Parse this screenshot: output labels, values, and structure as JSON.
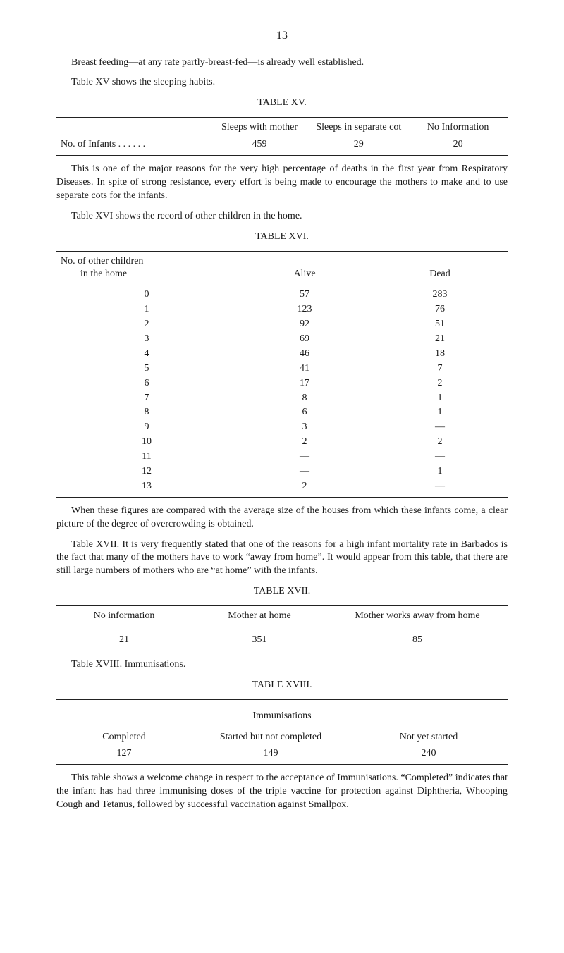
{
  "page_number": "13",
  "intro_para": "Breast feeding—at any rate partly-breast-fed—is already well established.",
  "table_xv": {
    "intro": "Table XV shows the sleeping habits.",
    "title": "TABLE  XV.",
    "headers": [
      "",
      "Sleeps with mother",
      "Sleeps in separate cot",
      "No Information"
    ],
    "row_label": "No. of Infants . .     . .     . .",
    "row": [
      "459",
      "29",
      "20"
    ]
  },
  "para_after_xv": "This is one of the major reasons for the very high percentage of deaths in the first year from Respiratory Diseases. In spite of strong resistance, every effort is being made to encourage the mothers to make and to use separ­ate cots for the infants.",
  "table_xvi": {
    "intro": "Table XVI shows the record of other children in the home.",
    "title": "TABLE  XVI.",
    "col1_header_l1": "No. of other children",
    "col1_header_l2": "in the home",
    "col2_header": "Alive",
    "col3_header": "Dead",
    "rows": [
      {
        "n": "0",
        "alive": "57",
        "dead": "283"
      },
      {
        "n": "1",
        "alive": "123",
        "dead": "76"
      },
      {
        "n": "2",
        "alive": "92",
        "dead": "51"
      },
      {
        "n": "3",
        "alive": "69",
        "dead": "21"
      },
      {
        "n": "4",
        "alive": "46",
        "dead": "18"
      },
      {
        "n": "5",
        "alive": "41",
        "dead": "7"
      },
      {
        "n": "6",
        "alive": "17",
        "dead": "2"
      },
      {
        "n": "7",
        "alive": "8",
        "dead": "1"
      },
      {
        "n": "8",
        "alive": "6",
        "dead": "1"
      },
      {
        "n": "9",
        "alive": "3",
        "dead": "—"
      },
      {
        "n": "10",
        "alive": "2",
        "dead": "2"
      },
      {
        "n": "11",
        "alive": "—",
        "dead": "—"
      },
      {
        "n": "12",
        "alive": "—",
        "dead": "1"
      },
      {
        "n": "13",
        "alive": "2",
        "dead": "—"
      }
    ]
  },
  "para_after_xvi": "When these figures are compared with the average size of the houses from which these infants come, a clear picture of the degree of overcrowding is obtained.",
  "para_before_xvii": "Table XVII. It is very frequently stated that one of the reasons for a high infant mortality rate in Barbados is the fact that many of the mothers have to work “away from home”. It would appear from this table, that there are still large numbers of mothers who are “at home” with the infants.",
  "table_xvii": {
    "title": "TABLE  XVII.",
    "headers": [
      "No information",
      "Mother at home",
      "Mother works away from home"
    ],
    "row": [
      "21",
      "351",
      "85"
    ]
  },
  "table_xviii": {
    "intro": "Table XVIII.  Immunisations.",
    "title": "TABLE  XVIII.",
    "section_header": "Immunisations",
    "headers": [
      "Completed",
      "Started but not completed",
      "Not yet started"
    ],
    "row": [
      "127",
      "149",
      "240"
    ]
  },
  "final_para": "This table shows a welcome change in respect to the acceptance of Im­munisations. “Completed” indicates that the infant has had three immunis­ing doses of the triple vaccine for protection against Diphtheria, Whooping Cough and Tetanus, followed by successful vaccination against Smallpox."
}
